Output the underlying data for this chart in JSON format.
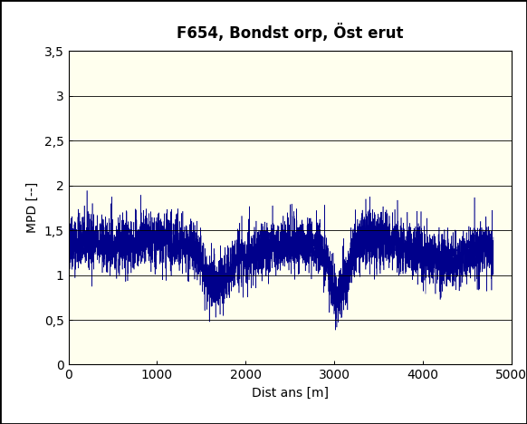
{
  "title": "F654, Bondst orp, Öst erut",
  "xlabel": "Dist ans [m]",
  "ylabel": "MPD [--]",
  "xlim": [
    0,
    5000
  ],
  "ylim": [
    0,
    3.5
  ],
  "yticks": [
    0,
    0.5,
    1.0,
    1.5,
    2.0,
    2.5,
    3.0,
    3.5
  ],
  "ytick_labels": [
    "0",
    "0,5",
    "1",
    "1,5",
    "2",
    "2,5",
    "3",
    "3,5"
  ],
  "xticks": [
    0,
    1000,
    2000,
    3000,
    4000,
    5000
  ],
  "line_color": "#00008B",
  "bg_color": "#FFFFEE",
  "outer_bg": "#FFFFFF",
  "frame_color": "#000000",
  "title_fontsize": 12,
  "label_fontsize": 10,
  "tick_fontsize": 10,
  "seed": 42
}
